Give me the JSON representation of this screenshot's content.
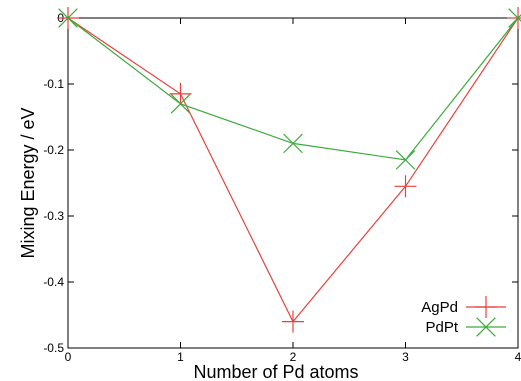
{
  "chart_data": {
    "type": "line",
    "title": "",
    "xlabel": "Number of Pd atoms",
    "ylabel": "Mixing Energy / eV",
    "xlim": [
      0,
      4
    ],
    "ylim": [
      -0.5,
      0
    ],
    "x_ticks": [
      "0",
      "1",
      "2",
      "3",
      "4"
    ],
    "y_ticks": [
      "0",
      "-0.1",
      "-0.2",
      "-0.3",
      "-0.4",
      "-0.5"
    ],
    "grid": false,
    "legend_position": "bottom-right",
    "series": [
      {
        "name": "AgPd",
        "color": "#e8413c",
        "marker": "plus",
        "x": [
          0,
          1,
          2,
          3,
          4
        ],
        "y": [
          0,
          -0.115,
          -0.46,
          -0.255,
          0
        ]
      },
      {
        "name": "PdPt",
        "color": "#3cab3c",
        "marker": "cross",
        "x": [
          0,
          1,
          2,
          3,
          4
        ],
        "y": [
          0,
          -0.13,
          -0.19,
          -0.215,
          0
        ]
      }
    ]
  }
}
